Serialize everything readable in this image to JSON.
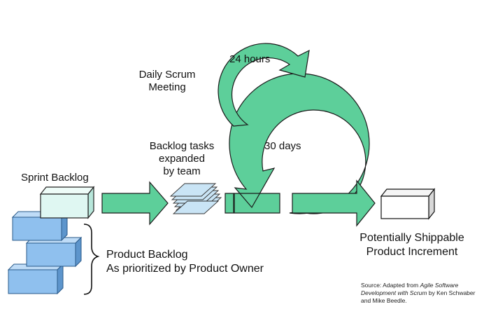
{
  "labels": {
    "hours": "24 hours",
    "daily_scrum_line1": "Daily Scrum",
    "daily_scrum_line2": "Meeting",
    "backlog_tasks_line1": "Backlog tasks",
    "backlog_tasks_line2": "expanded",
    "backlog_tasks_line3": "by team",
    "days": "30 days",
    "sprint_backlog": "Sprint Backlog",
    "product_backlog_line1": "Product Backlog",
    "product_backlog_line2": "As prioritized by Product Owner",
    "increment_line1": "Potentially Shippable",
    "increment_line2": "Product Increment"
  },
  "source": {
    "prefix": "Source: Adapted from ",
    "title": "Agile Software Development with Scrum",
    "suffix": " by Ken Schwaber and Mike Beedle."
  },
  "colors": {
    "arrow_fill": "#5dcf9a",
    "arrow_stroke": "#1a1a1a",
    "product_block": "#8fc0ee",
    "sprint_block": "#dff7f2",
    "increment_block": "#ffffff"
  }
}
